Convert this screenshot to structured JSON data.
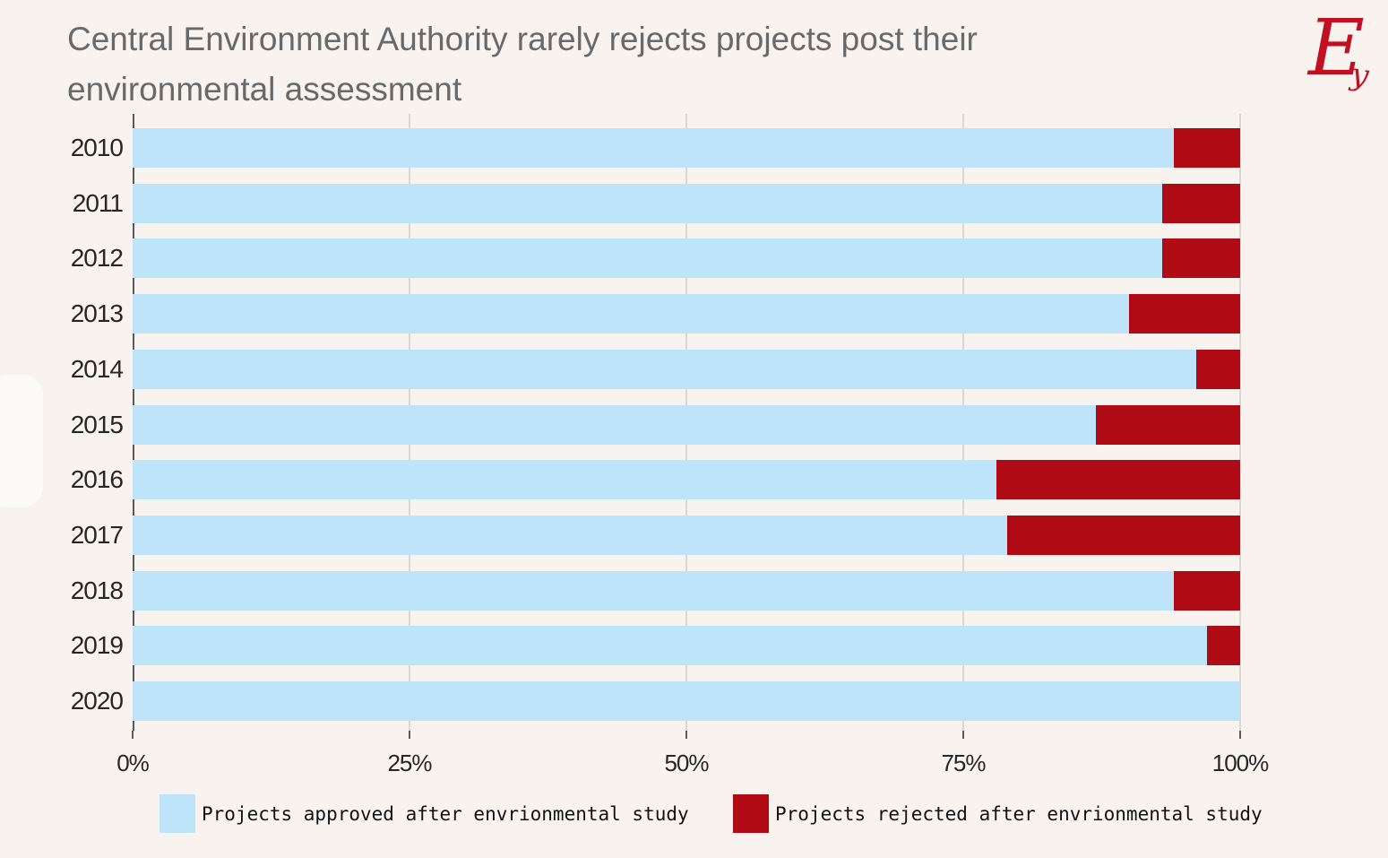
{
  "title": {
    "line1": "Central Environment Authority rarely rejects projects post their",
    "line2": "environmental assessment"
  },
  "logo": {
    "name": "ey-script-logo",
    "glyph_main": "E",
    "glyph_sub": "y",
    "color": "#C11022"
  },
  "colors": {
    "background": "#F8F3EE",
    "approved_blue": "#BDE4F9",
    "rejected_red": "#B00A15",
    "title_gray": "#696969",
    "axis_text": "#262626",
    "gridline": "#DCD7D2",
    "axis_line": "#5A5A5A"
  },
  "chart_data": {
    "type": "bar",
    "orientation": "horizontal",
    "stacked": true,
    "title": "Central Environment Authority rarely rejects projects post their environmental assessment",
    "categories": [
      "2010",
      "2011",
      "2012",
      "2013",
      "2014",
      "2015",
      "2016",
      "2017",
      "2018",
      "2019",
      "2020"
    ],
    "series": [
      {
        "name": "Projects approved after envrionmental study",
        "color": "#BDE4F9",
        "values": [
          94,
          93,
          93,
          90,
          96,
          87,
          78,
          79,
          94,
          97,
          100
        ]
      },
      {
        "name": "Projects rejected after envrionmental study",
        "color": "#B00A15",
        "values": [
          6,
          7,
          7,
          10,
          4,
          13,
          22,
          21,
          6,
          3,
          0
        ]
      }
    ],
    "x_axis": {
      "tick_labels": [
        "0%",
        "25%",
        "50%",
        "75%",
        "100%"
      ],
      "tick_values": [
        0,
        25,
        50,
        75,
        100
      ],
      "xlim": [
        0,
        100
      ],
      "unit": "percent"
    },
    "grid": "vertical-gridlines-at-ticks",
    "legend_position": "bottom"
  }
}
